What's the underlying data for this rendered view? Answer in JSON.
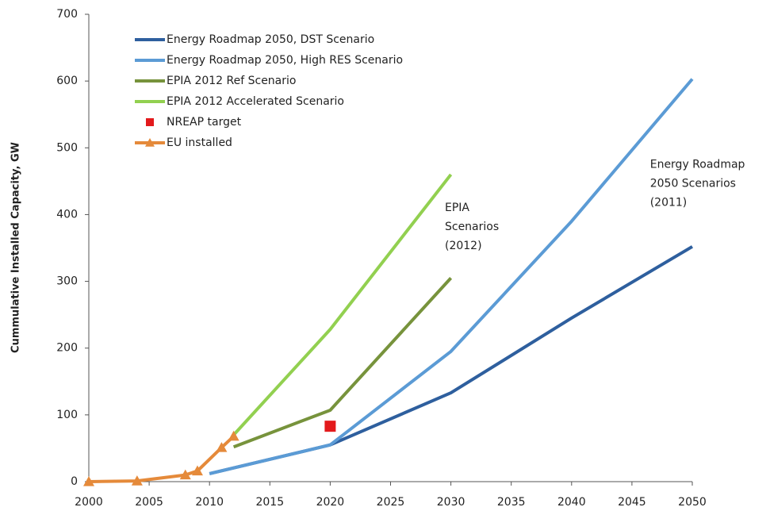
{
  "chart_data": {
    "type": "line",
    "y_label": "Cummulative Installed Capacity, GW",
    "xlim": [
      2000,
      2050
    ],
    "xticks": [
      2000,
      2005,
      2010,
      2015,
      2020,
      2025,
      2030,
      2035,
      2040,
      2045,
      2050
    ],
    "ylim": [
      0,
      700
    ],
    "yticks": [
      0,
      100,
      200,
      300,
      400,
      500,
      600,
      700
    ],
    "grid": false,
    "legend": "top-left",
    "series": [
      {
        "name": "Energy Roadmap 2050, DST Scenario",
        "color": "#2e5f9e",
        "x": [
          2010,
          2020,
          2030,
          2040,
          2050
        ],
        "values": [
          12,
          55,
          133,
          245,
          352
        ],
        "line": true
      },
      {
        "name": "Energy Roadmap 2050, High RES Scenario",
        "color": "#5b9bd5",
        "x": [
          2010,
          2020,
          2030,
          2040,
          2050
        ],
        "values": [
          12,
          55,
          195,
          390,
          603
        ],
        "line": true
      },
      {
        "name": "EPIA 2012 Ref Scenario",
        "color": "#77933c",
        "x": [
          2012,
          2020,
          2030
        ],
        "values": [
          52,
          107,
          305
        ],
        "line": true
      },
      {
        "name": "EPIA 2012 Accelerated Scenario",
        "color": "#92d050",
        "x": [
          2012,
          2020,
          2030
        ],
        "values": [
          70,
          228,
          460
        ],
        "line": true
      },
      {
        "name": "NREAP target",
        "color": "#e31a1c",
        "x": [
          2020
        ],
        "values": [
          83
        ],
        "line": false,
        "marker": "square"
      },
      {
        "name": "EU installed",
        "color": "#e58a3a",
        "x": [
          2000,
          2004,
          2008,
          2009,
          2011,
          2012
        ],
        "values": [
          0,
          1,
          10,
          16,
          51,
          68
        ],
        "line": true,
        "marker": "triangle"
      }
    ],
    "annotations": [
      {
        "lines": [
          "EPIA",
          "Scenarios",
          "(2012)"
        ],
        "x": 2029.5,
        "y": 410
      },
      {
        "lines": [
          "Energy Roadmap",
          "2050 Scenarios",
          "(2011)"
        ],
        "x": 2046.5,
        "y": 475
      }
    ]
  }
}
